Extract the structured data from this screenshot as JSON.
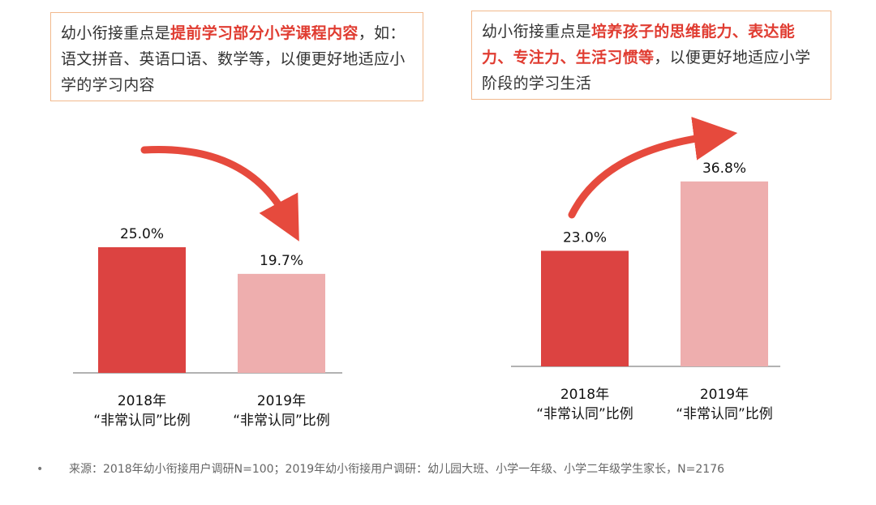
{
  "callouts": {
    "left": {
      "prefix": "幼小衔接重点是",
      "highlight": "提前学习部分小学课程内容",
      "suffix": "，如：语文拼音、英语口语、数学等，以便更好地适应小学的学习内容"
    },
    "right": {
      "prefix": "幼小衔接重点是",
      "highlight": "培养孩子的思维能力、表达能力、专注力、生活习惯等",
      "suffix": "，以便更好地适应小学阶段的学习生活"
    }
  },
  "chart_data": [
    {
      "type": "bar",
      "categories": [
        "2018年\n“非常认同”比例",
        "2019年\n“非常认同”比例"
      ],
      "category_lines": [
        [
          "2018年",
          "“非常认同”比例"
        ],
        [
          "2019年",
          "“非常认同”比例"
        ]
      ],
      "values": [
        25.0,
        19.7
      ],
      "labels": [
        "25.0%",
        "19.7%"
      ],
      "colors": [
        "#dc4341",
        "#eeaeae"
      ],
      "trend": "down",
      "ylim": [
        0,
        40
      ],
      "title": "",
      "xlabel": "",
      "ylabel": ""
    },
    {
      "type": "bar",
      "categories": [
        "2018年\n“非常认同”比例",
        "2019年\n“非常认同”比例"
      ],
      "category_lines": [
        [
          "2018年",
          "“非常认同”比例"
        ],
        [
          "2019年",
          "“非常认同”比例"
        ]
      ],
      "values": [
        23.0,
        36.8
      ],
      "labels": [
        "23.0%",
        "36.8%"
      ],
      "colors": [
        "#dc4341",
        "#eeaeae"
      ],
      "trend": "up",
      "ylim": [
        0,
        40
      ],
      "title": "",
      "xlabel": "",
      "ylabel": ""
    }
  ],
  "footer": {
    "bullet": "•",
    "text": "来源：2018年幼小衔接用户调研N=100；2019年幼小衔接用户调研：幼儿园大班、小学一年级、小学二年级学生家长，N=2176"
  },
  "colors": {
    "accent": "#e03c31",
    "arrow": "#e64a3d",
    "baseline": "#999999",
    "border": "#f2b98d"
  }
}
